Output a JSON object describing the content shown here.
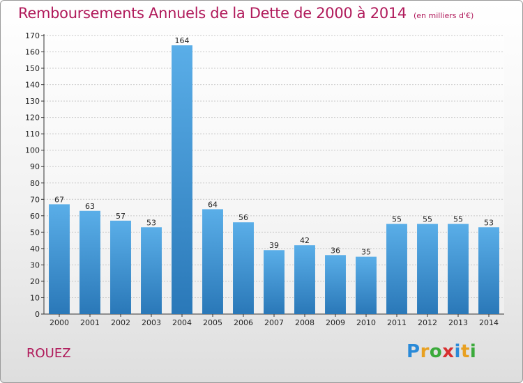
{
  "header": {
    "title": "Remboursements Annuels de la Dette de 2000 à 2014",
    "unit": "(en milliers d'€)"
  },
  "footer": {
    "town": "ROUEZ",
    "logo": "Proxiti"
  },
  "colors": {
    "title": "#b0195a",
    "bar_top": "#5aaee8",
    "bar_bottom": "#2a78b8",
    "grid": "#c8c8c8"
  },
  "chart_data": {
    "type": "bar",
    "title": "Remboursements Annuels de la Dette de 2000 à 2014",
    "subtitle": "(en milliers d'€)",
    "xlabel": "",
    "ylabel": "",
    "categories": [
      "2000",
      "2001",
      "2002",
      "2003",
      "2004",
      "2005",
      "2006",
      "2007",
      "2008",
      "2009",
      "2010",
      "2011",
      "2012",
      "2013",
      "2014"
    ],
    "values": [
      67,
      63,
      57,
      53,
      164,
      64,
      56,
      39,
      42,
      36,
      35,
      55,
      55,
      55,
      53
    ],
    "ylim": [
      0,
      170
    ],
    "yticks": [
      0,
      10,
      20,
      30,
      40,
      50,
      60,
      70,
      80,
      90,
      100,
      110,
      120,
      130,
      140,
      150,
      160,
      170
    ],
    "grid": true,
    "data_labels": true
  }
}
